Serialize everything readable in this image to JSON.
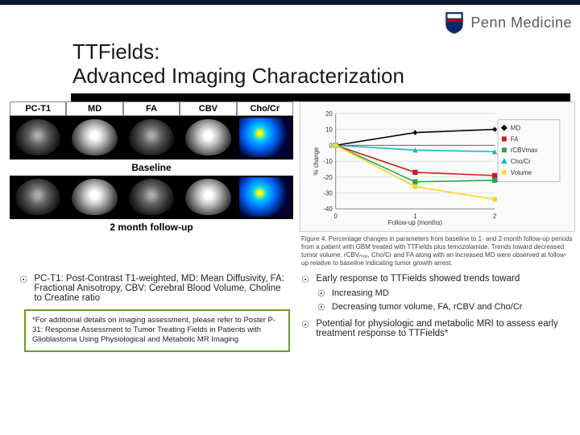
{
  "logo": {
    "text": "Penn Medicine",
    "shield_fill": "#0b2a6b",
    "shield_accent": "#b00020"
  },
  "title": {
    "line1": "TTFields:",
    "line2": "Advanced Imaging Characterization"
  },
  "scan_labels": [
    "PC-T1",
    "MD",
    "FA",
    "CBV",
    "Cho/Cr"
  ],
  "row_label_baseline": "Baseline",
  "row_label_followup": "2 month follow-up",
  "chart": {
    "ylabel": "% change",
    "xlabel": "Follow-up (months)",
    "ylim": [
      -40,
      20
    ],
    "ytick_step": 10,
    "xticks": [
      0,
      1,
      2
    ],
    "background_color": "#fafafa",
    "grid_color": "#cccccc",
    "axis_color": "#888888",
    "label_fontsize": 8,
    "series": [
      {
        "name": "MD",
        "color": "#000000",
        "marker": "diamond",
        "values": [
          0,
          8,
          10
        ]
      },
      {
        "name": "FA",
        "color": "#d01c1c",
        "marker": "square",
        "values": [
          0,
          -17,
          -19
        ]
      },
      {
        "name": "rCBVmax",
        "color": "#1ea84b",
        "marker": "square",
        "values": [
          0,
          -23,
          -22
        ]
      },
      {
        "name": "Cho/Cr",
        "color": "#18b3c8",
        "marker": "triangle",
        "values": [
          0,
          -3,
          -4
        ]
      },
      {
        "name": "Volume",
        "color": "#ffd21f",
        "marker": "circle",
        "values": [
          0,
          -26,
          -34
        ]
      }
    ],
    "caption": "Figure 4. Percentage changes in parameters from baseline to 1- and 2-month follow-up periods from a patient with GBM treated with TTFields plus temozolamide. Trends toward decreased tumor volume, rCBVₘₐₓ, Cho/Cr and FA along with an increased MD were observed at follow-up relative to baseline indicating tumor growth arrest."
  },
  "bullets": {
    "left_main": "PC-T1: Post-Contrast T1-weighted, MD: Mean Diffusivity, FA: Fractional Anisotropy, CBV: Cerebral Blood Volume, Choline to Creatine ratio",
    "right_main": "Early response to TTFields showed trends toward",
    "right_sub1": "Increasing MD",
    "right_sub2": "Decreasing tumor volume, FA, rCBV and Cho/Cr",
    "right_main2": "Potential for physiologic and metabolic MRI to assess early treatment response to TTFields*"
  },
  "footnote": "*For additional details on imaging assessment, please refer to Poster P-31: Response Assessment to Tumor Treating Fields in Patients with Glioblastoma Using Physiological and Metabolic MR Imaging",
  "bullet_glyph": "☉"
}
